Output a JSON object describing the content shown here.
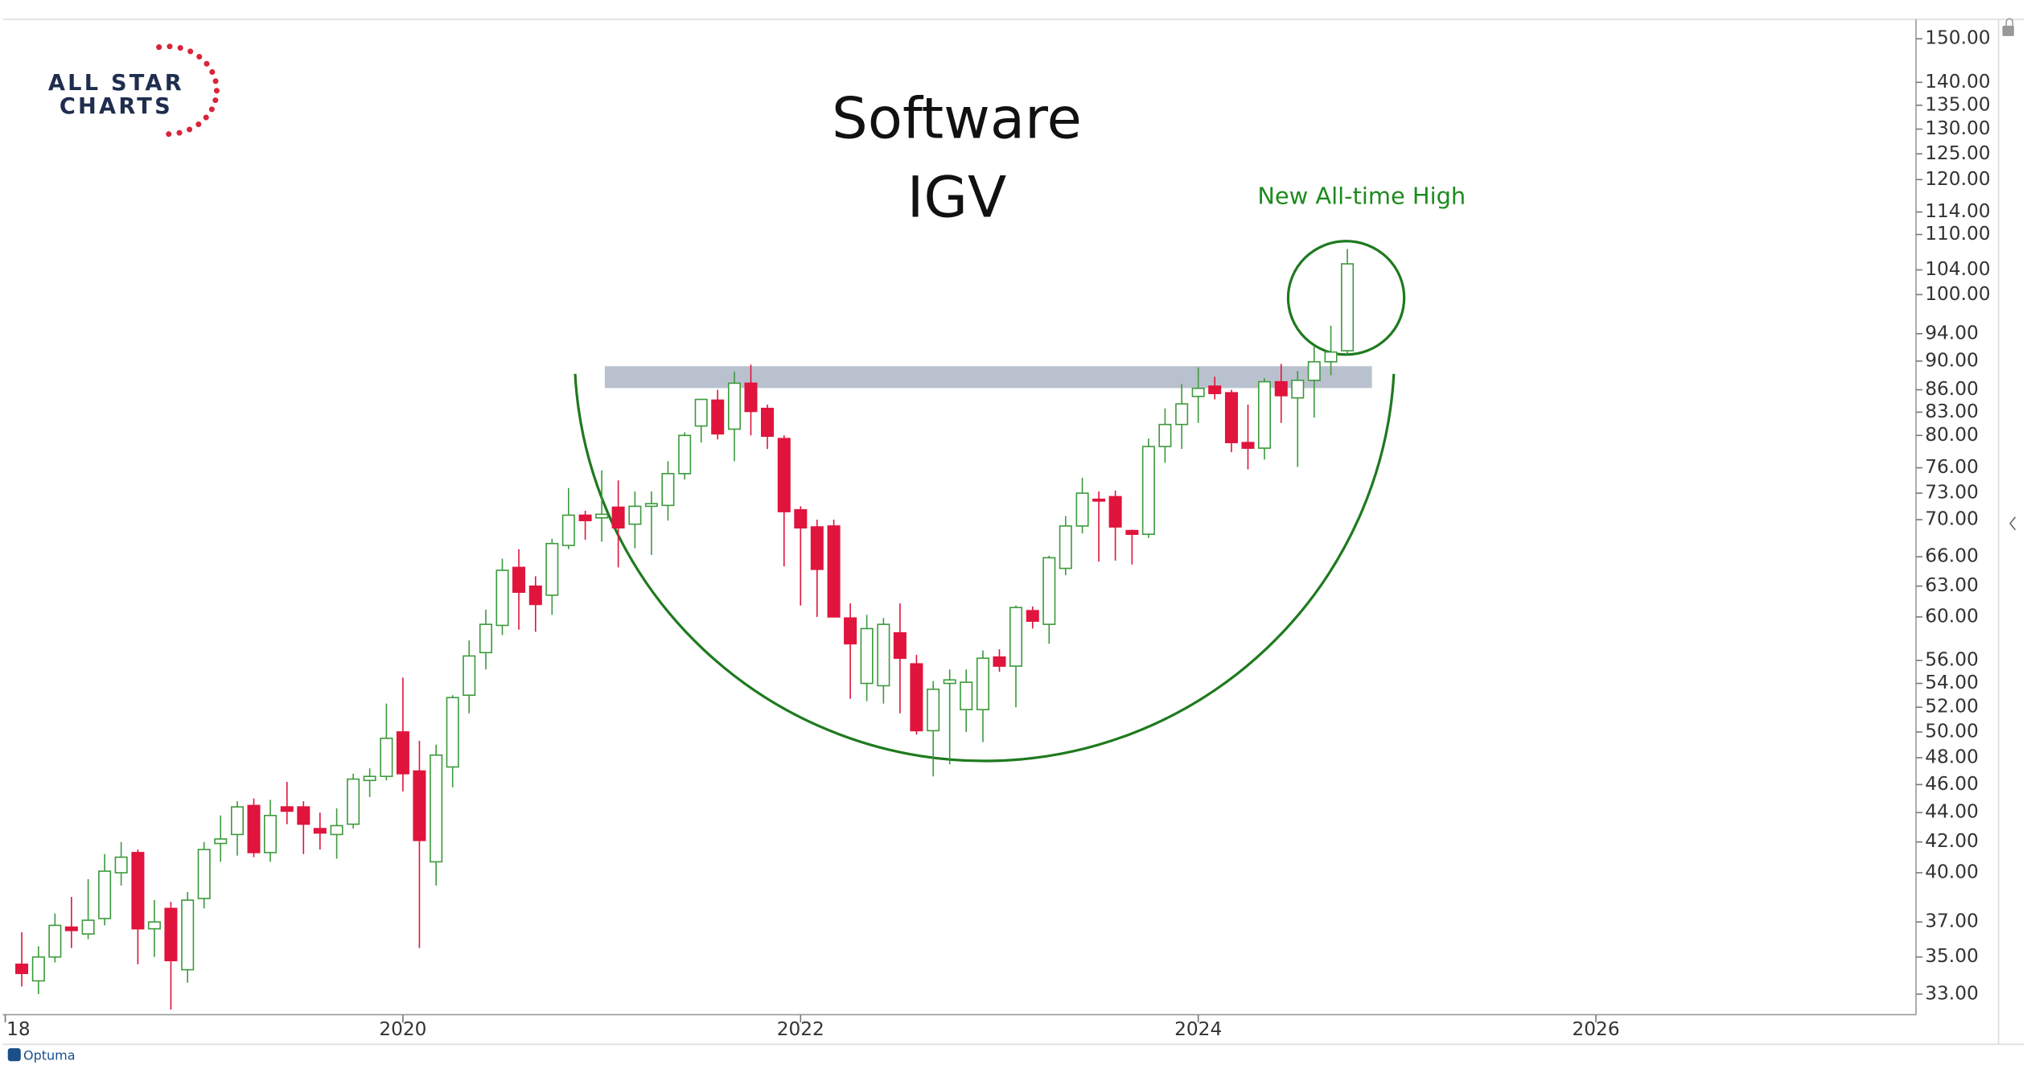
{
  "logo": {
    "line1": "ALL STAR",
    "line2": "CHARTS"
  },
  "footer": "Optuma",
  "chart_data": {
    "type": "candlestick",
    "title": "Software",
    "subtitle": "IGV",
    "annotations": [
      "New All-time High"
    ],
    "log_scale": true,
    "up_color": "#3c9a3c",
    "down_color": "#e0143c",
    "annotation_color": "#1e8a1e",
    "x": [
      2018.083,
      2018.167,
      2018.25,
      2018.333,
      2018.417,
      2018.5,
      2018.583,
      2018.667,
      2018.75,
      2018.833,
      2018.917,
      2019.0,
      2019.083,
      2019.167,
      2019.25,
      2019.333,
      2019.417,
      2019.5,
      2019.583,
      2019.667,
      2019.75,
      2019.833,
      2019.917,
      2020.0,
      2020.083,
      2020.167,
      2020.25,
      2020.333,
      2020.417,
      2020.5,
      2020.583,
      2020.667,
      2020.75,
      2020.833,
      2020.917,
      2021.0,
      2021.083,
      2021.167,
      2021.25,
      2021.333,
      2021.417,
      2021.5,
      2021.583,
      2021.667,
      2021.75,
      2021.833,
      2021.917,
      2022.0,
      2022.083,
      2022.167,
      2022.25,
      2022.333,
      2022.417,
      2022.5,
      2022.583,
      2022.667,
      2022.75,
      2022.833,
      2022.917,
      2023.0,
      2023.083,
      2023.167,
      2023.25,
      2023.333,
      2023.417,
      2023.5,
      2023.583,
      2023.667,
      2023.75,
      2023.833,
      2023.917,
      2024.0,
      2024.083,
      2024.167,
      2024.25,
      2024.333,
      2024.417,
      2024.5,
      2024.583,
      2024.667,
      2024.75
    ],
    "open": [
      34.6,
      33.7,
      35.0,
      36.7,
      36.3,
      37.2,
      40.0,
      41.3,
      36.6,
      37.8,
      34.3,
      38.4,
      41.9,
      42.5,
      44.5,
      41.3,
      44.4,
      44.4,
      42.9,
      42.5,
      43.2,
      46.3,
      46.6,
      50.0,
      47.0,
      40.7,
      47.3,
      53.0,
      56.7,
      59.2,
      64.9,
      63.0,
      62.1,
      67.2,
      70.5,
      70.2,
      71.4,
      69.5,
      71.5,
      71.6,
      75.3,
      81.2,
      84.6,
      80.8,
      86.9,
      83.5,
      79.6,
      71.1,
      69.2,
      69.3,
      59.9,
      54.0,
      53.8,
      58.5,
      55.7,
      50.1,
      54.0,
      51.8,
      51.8,
      56.3,
      55.5,
      60.6,
      59.3,
      64.8,
      69.3,
      72.3,
      72.6,
      68.8,
      68.4,
      78.6,
      81.4,
      85.1,
      86.5,
      85.6,
      79.1,
      78.4,
      87.1,
      84.9,
      87.3,
      89.9,
      91.5
    ],
    "high": [
      36.4,
      35.6,
      37.5,
      38.5,
      39.6,
      41.2,
      42.0,
      41.5,
      38.3,
      38.2,
      38.8,
      42.0,
      43.8,
      44.8,
      45.0,
      44.9,
      46.2,
      44.8,
      44.0,
      44.3,
      46.8,
      47.2,
      52.3,
      54.5,
      49.3,
      49.0,
      53.0,
      57.8,
      60.7,
      65.8,
      66.8,
      64.0,
      67.9,
      73.6,
      71.0,
      75.7,
      74.5,
      73.2,
      73.2,
      76.8,
      80.4,
      84.7,
      86.0,
      88.5,
      89.5,
      84.0,
      80.0,
      71.5,
      70.0,
      70.0,
      61.3,
      60.2,
      59.9,
      61.3,
      56.5,
      54.2,
      55.2,
      55.2,
      56.9,
      57.0,
      61.1,
      61.0,
      66.1,
      70.4,
      74.8,
      73.2,
      73.3,
      68.9,
      79.6,
      83.5,
      86.8,
      89.1,
      87.8,
      86.0,
      84.0,
      87.6,
      89.6,
      88.6,
      92.2,
      95.2,
      107.5
    ],
    "low": [
      33.4,
      33.0,
      34.7,
      35.5,
      36.0,
      36.8,
      39.2,
      34.6,
      35.0,
      32.2,
      33.6,
      37.8,
      40.7,
      41.1,
      41.0,
      40.7,
      43.2,
      41.2,
      41.5,
      40.9,
      42.9,
      45.1,
      46.3,
      45.5,
      35.5,
      39.2,
      45.8,
      51.5,
      55.2,
      58.3,
      58.8,
      58.6,
      60.2,
      66.8,
      67.8,
      67.6,
      64.9,
      66.9,
      66.2,
      69.9,
      74.6,
      79.1,
      79.5,
      76.8,
      80.0,
      78.3,
      65.0,
      61.1,
      60.0,
      60.0,
      52.7,
      52.5,
      52.3,
      51.5,
      49.8,
      46.6,
      47.5,
      50.0,
      49.2,
      55.0,
      52.0,
      58.9,
      57.5,
      64.1,
      68.5,
      65.5,
      65.6,
      65.2,
      68.0,
      76.6,
      78.3,
      81.6,
      84.7,
      77.9,
      75.8,
      77.0,
      81.6,
      76.1,
      82.3,
      88.0,
      90.9
    ],
    "close": [
      34.1,
      35.0,
      36.8,
      36.5,
      37.1,
      40.1,
      41.0,
      36.6,
      37.0,
      34.8,
      38.3,
      41.5,
      42.2,
      44.4,
      41.3,
      43.8,
      44.1,
      43.2,
      42.6,
      43.1,
      46.4,
      46.6,
      49.5,
      46.8,
      42.1,
      48.2,
      52.8,
      56.4,
      59.3,
      64.6,
      62.4,
      61.2,
      67.4,
      70.5,
      69.9,
      70.6,
      69.1,
      71.5,
      71.8,
      75.3,
      80.0,
      84.7,
      80.2,
      86.9,
      83.1,
      79.9,
      70.9,
      69.1,
      64.7,
      60.0,
      57.5,
      58.9,
      59.3,
      56.2,
      50.1,
      53.5,
      54.3,
      54.1,
      56.2,
      55.5,
      60.9,
      59.6,
      65.9,
      69.3,
      73.0,
      72.1,
      69.2,
      68.4,
      78.6,
      81.4,
      84.1,
      86.2,
      85.5,
      79.1,
      78.4,
      87.1,
      85.2,
      87.3,
      89.9,
      91.3,
      105.0
    ],
    "xlim": [
      2018.0,
      2027.61
    ],
    "xticks": [
      {
        "value": 2018,
        "label": "18"
      },
      2020,
      2022,
      2024,
      2026
    ],
    "ylim": [
      31.94,
      154.7
    ],
    "yticks": [
      {
        "value": 150,
        "label": "150.00"
      },
      {
        "value": 140,
        "label": "140.00"
      },
      {
        "value": 135,
        "label": "135.00"
      },
      {
        "value": 130,
        "label": "130.00"
      },
      {
        "value": 125,
        "label": "125.00"
      },
      {
        "value": 120,
        "label": "120.00"
      },
      {
        "value": 114,
        "label": "114.00"
      },
      {
        "value": 110,
        "label": "110.00"
      },
      {
        "value": 104,
        "label": "104.00"
      },
      {
        "value": 100,
        "label": "100.00"
      },
      {
        "value": 94,
        "label": "94.00"
      },
      {
        "value": 90,
        "label": "90.00"
      },
      {
        "value": 86,
        "label": "86.00"
      },
      {
        "value": 83,
        "label": "83.00"
      },
      {
        "value": 80,
        "label": "80.00"
      },
      {
        "value": 76,
        "label": "76.00"
      },
      {
        "value": 73,
        "label": "73.00"
      },
      {
        "value": 70,
        "label": "70.00"
      },
      {
        "value": 66,
        "label": "66.00"
      },
      {
        "value": 63,
        "label": "63.00"
      },
      {
        "value": 60,
        "label": "60.00"
      },
      {
        "value": 56,
        "label": "56.00"
      },
      {
        "value": 54,
        "label": "54.00"
      },
      {
        "value": 52,
        "label": "52.00"
      },
      {
        "value": 50,
        "label": "50.00"
      },
      {
        "value": 48,
        "label": "48.00"
      },
      {
        "value": 46,
        "label": "46.00"
      },
      {
        "value": 44,
        "label": "44.00"
      },
      {
        "value": 42,
        "label": "42.00"
      },
      {
        "value": 40,
        "label": "40.00"
      },
      {
        "value": 37,
        "label": "37.00"
      },
      {
        "value": 35,
        "label": "35.00"
      },
      {
        "value": 33,
        "label": "33.00"
      }
    ]
  }
}
